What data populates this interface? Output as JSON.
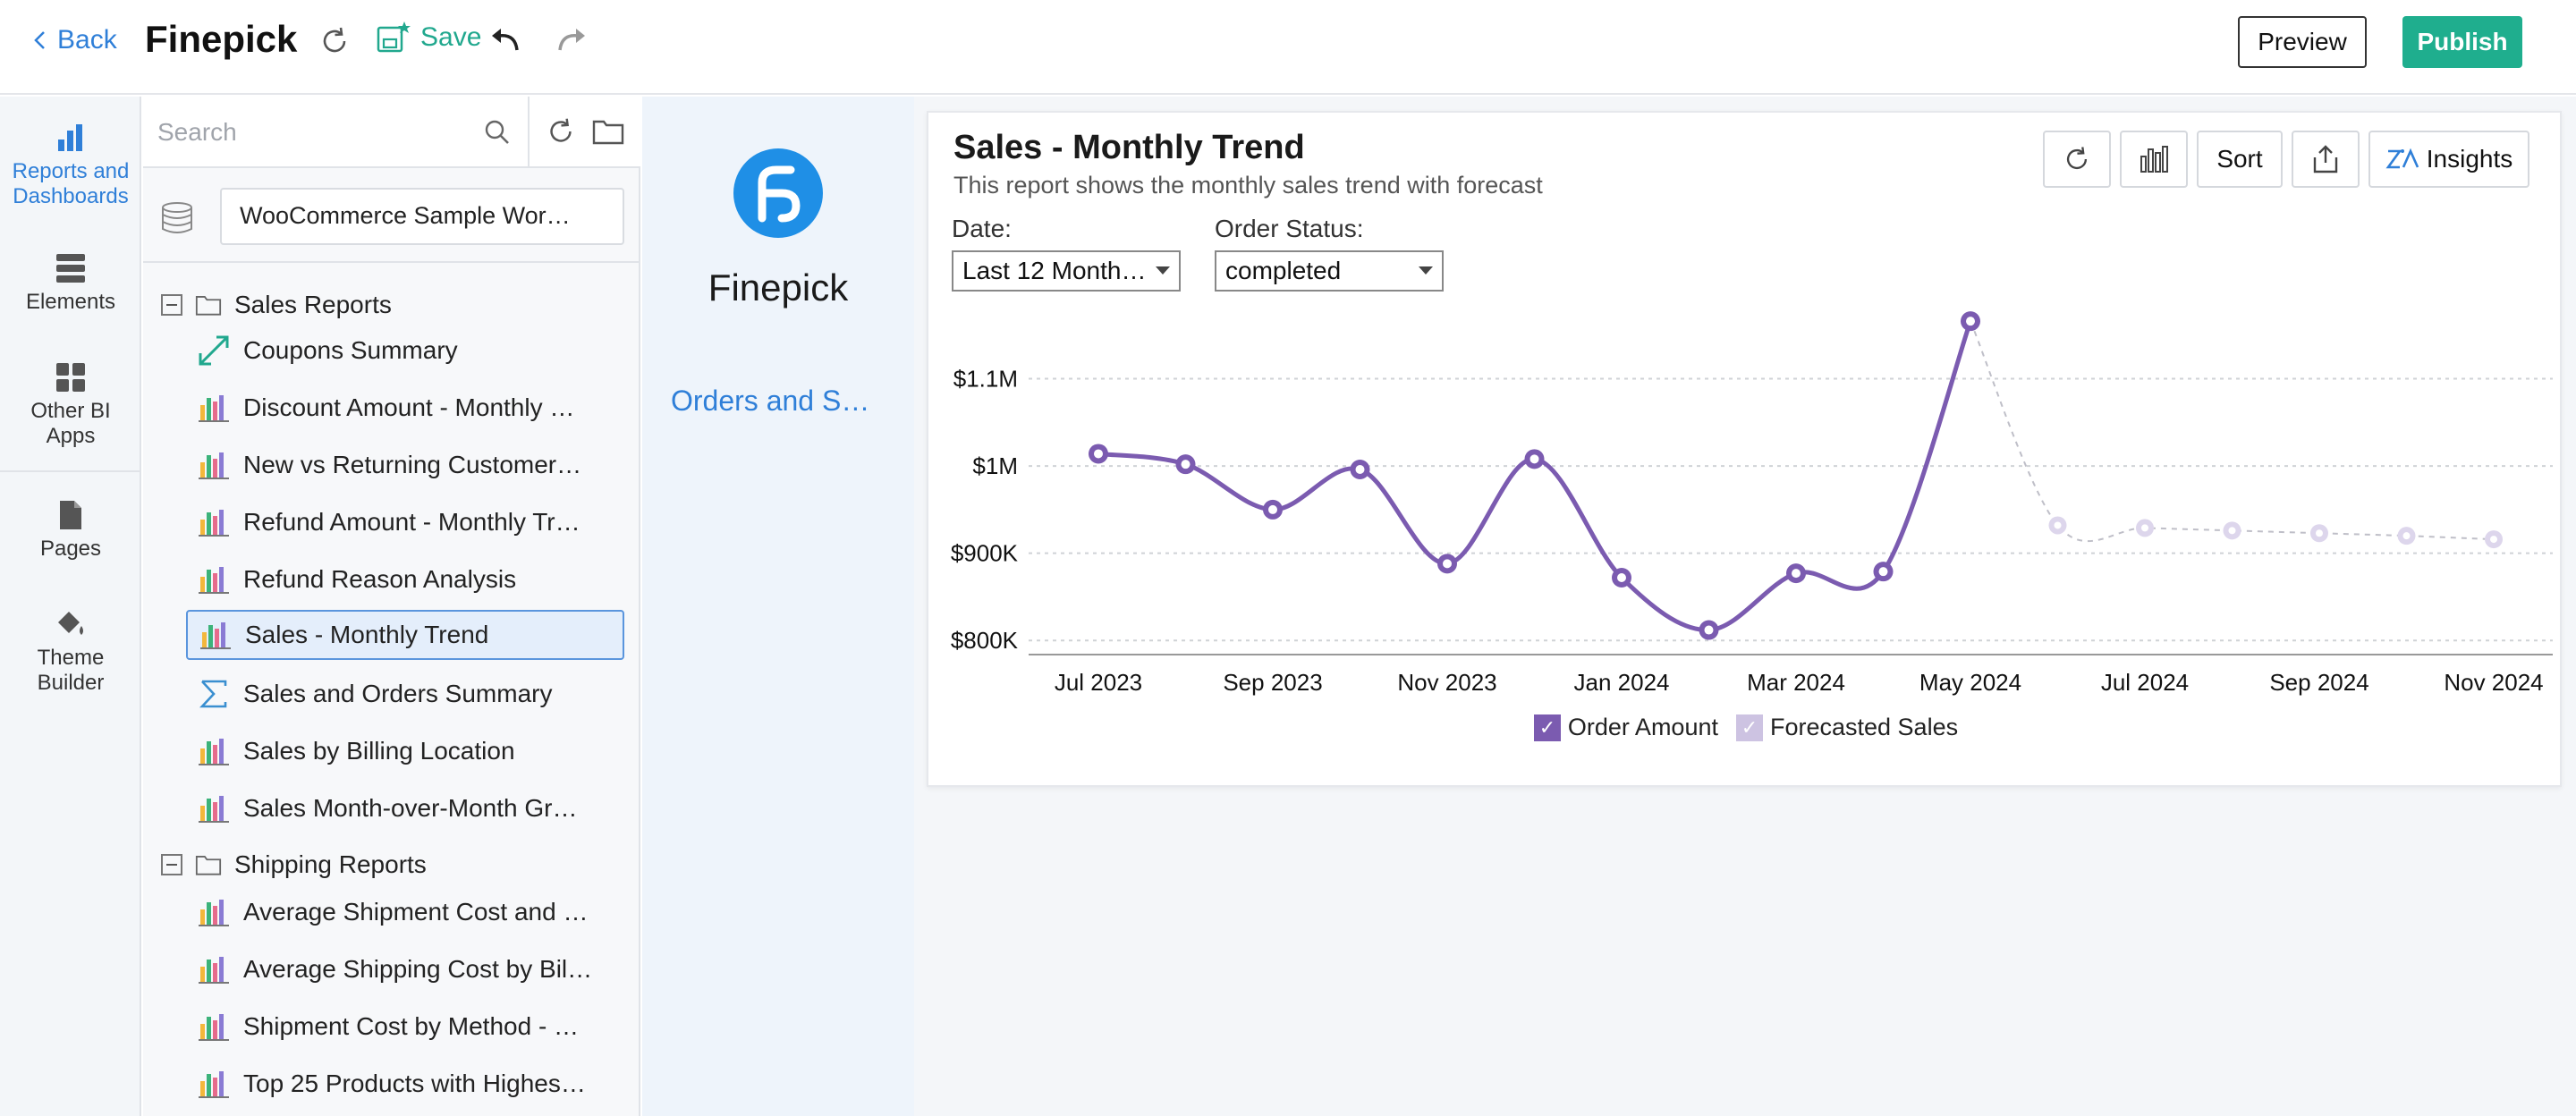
{
  "topbar": {
    "back_label": "Back",
    "app_title": "Finepick",
    "save_label": "Save",
    "preview_label": "Preview",
    "publish_label": "Publish"
  },
  "rail": {
    "items": [
      {
        "label_line1": "Reports and",
        "label_line2": "Dashboards",
        "icon": "bar-chart-icon",
        "active": true
      },
      {
        "label_line1": "Elements",
        "label_line2": "",
        "icon": "elements-icon"
      },
      {
        "label_line1": "Other BI",
        "label_line2": "Apps",
        "icon": "grid-icon"
      },
      {
        "label_line1": "Pages",
        "label_line2": "",
        "icon": "page-icon"
      },
      {
        "label_line1": "Theme",
        "label_line2": "Builder",
        "icon": "paint-bucket-icon"
      }
    ]
  },
  "explorer": {
    "search_placeholder": "Search",
    "workspace": "WooCommerce Sample Wor…",
    "folders": [
      {
        "name": "Sales Reports",
        "reports": [
          {
            "name": "Coupons Summary",
            "icon": "pivot-icon"
          },
          {
            "name": "Discount Amount - Monthly …",
            "icon": "bar-chart-icon"
          },
          {
            "name": "New vs Returning Customer…",
            "icon": "bar-chart-icon"
          },
          {
            "name": "Refund Amount - Monthly Tr…",
            "icon": "bar-chart-icon"
          },
          {
            "name": "Refund Reason Analysis",
            "icon": "bar-chart-icon"
          },
          {
            "name": "Sales - Monthly Trend",
            "icon": "bar-chart-icon",
            "selected": true
          },
          {
            "name": "Sales and Orders Summary",
            "icon": "sigma-icon"
          },
          {
            "name": "Sales by Billing Location",
            "icon": "bar-chart-icon"
          },
          {
            "name": "Sales Month-over-Month Gr…",
            "icon": "bar-chart-icon"
          }
        ]
      },
      {
        "name": "Shipping Reports",
        "reports": [
          {
            "name": "Average Shipment Cost and …",
            "icon": "bar-chart-icon"
          },
          {
            "name": "Average Shipping Cost by Bil…",
            "icon": "bar-chart-icon"
          },
          {
            "name": "Shipment Cost by Method - …",
            "icon": "bar-chart-icon"
          },
          {
            "name": "Top 25 Products with Highes…",
            "icon": "bar-chart-icon"
          }
        ]
      }
    ]
  },
  "dashpanel": {
    "brand_name": "Finepick",
    "page_link": "Orders and S…"
  },
  "card": {
    "title": "Sales - Monthly Trend",
    "subtitle": "This report shows the monthly sales trend with forecast",
    "sort_label": "Sort",
    "insights_label": "Insights",
    "filters": [
      {
        "label": "Date:",
        "value": "Last 12 Month…"
      },
      {
        "label": "Order Status:",
        "value": "completed"
      }
    ]
  },
  "colors": {
    "accent": "#2f7fd8",
    "publish": "#1fae8e",
    "series_actual": "#7b5bb0",
    "series_forecast": "#cdc3e2"
  },
  "chart_data": {
    "type": "line",
    "title": "Sales - Monthly Trend",
    "xlabel": "",
    "ylabel": "",
    "ylim": [
      790000,
      1200000
    ],
    "y_ticks": [
      {
        "value": 800000,
        "label": "$800K"
      },
      {
        "value": 900000,
        "label": "$900K"
      },
      {
        "value": 1000000,
        "label": "$1M"
      },
      {
        "value": 1100000,
        "label": "$1.1M"
      }
    ],
    "x_tick_labels": [
      "Jul 2023",
      "Sep 2023",
      "Nov 2023",
      "Jan 2024",
      "Mar 2024",
      "May 2024",
      "Jul 2024",
      "Sep 2024",
      "Nov 2024"
    ],
    "x_tick_indices": [
      0,
      2,
      4,
      6,
      8,
      10,
      12,
      14,
      16
    ],
    "grid": true,
    "legend_position": "bottom-center",
    "series": [
      {
        "name": "Order Amount",
        "style": "solid",
        "points": [
          {
            "x": "Jul 2023",
            "y": 1014000
          },
          {
            "x": "Aug 2023",
            "y": 1002000
          },
          {
            "x": "Sep 2023",
            "y": 950000
          },
          {
            "x": "Oct 2023",
            "y": 996000
          },
          {
            "x": "Nov 2023",
            "y": 888000
          },
          {
            "x": "Dec 2023",
            "y": 1008000
          },
          {
            "x": "Jan 2024",
            "y": 872000
          },
          {
            "x": "Feb 2024",
            "y": 812000
          },
          {
            "x": "Mar 2024",
            "y": 877000
          },
          {
            "x": "Apr 2024",
            "y": 879000
          },
          {
            "x": "May 2024",
            "y": 1166000
          }
        ]
      },
      {
        "name": "Forecasted Sales",
        "style": "dashed",
        "points": [
          {
            "x": "May 2024",
            "y": 1166000
          },
          {
            "x": "Jun 2024",
            "y": 932000
          },
          {
            "x": "Jul 2024",
            "y": 929000
          },
          {
            "x": "Aug 2024",
            "y": 926000
          },
          {
            "x": "Sep 2024",
            "y": 923000
          },
          {
            "x": "Oct 2024",
            "y": 920000
          },
          {
            "x": "Nov 2024",
            "y": 916000
          }
        ]
      }
    ]
  }
}
